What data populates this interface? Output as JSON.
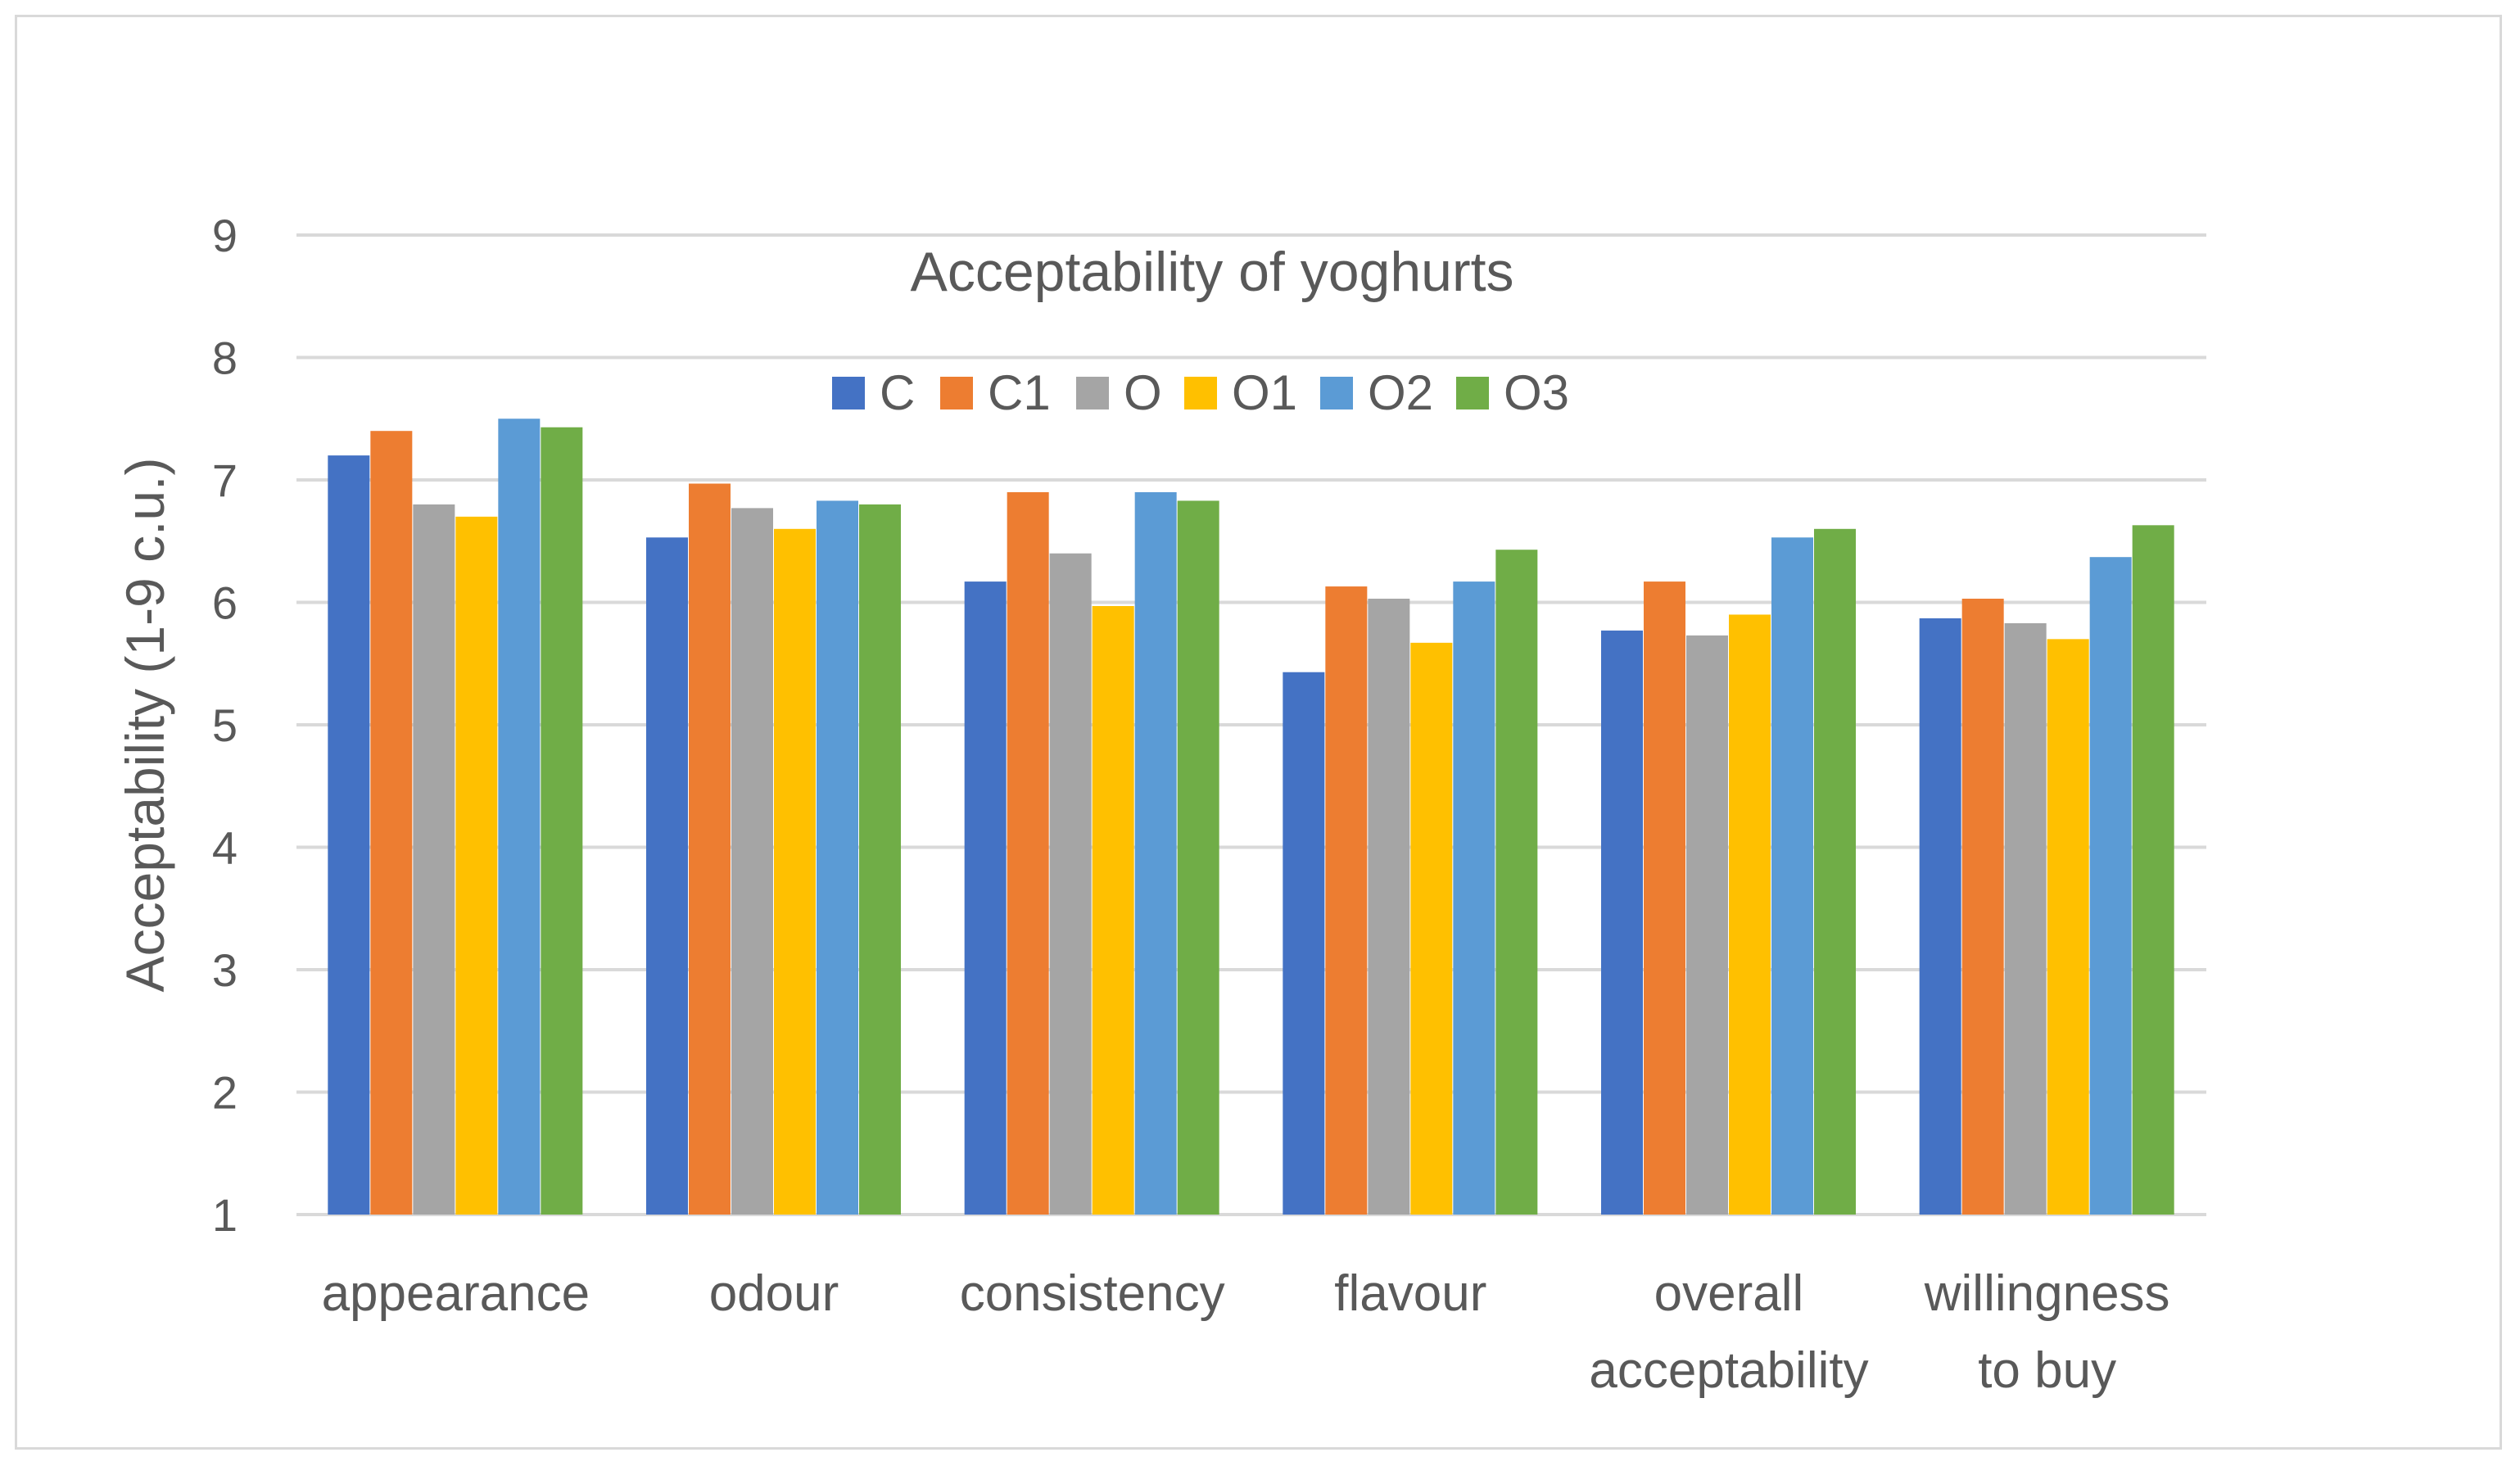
{
  "chart_data": {
    "type": "bar",
    "title": "Acceptability of yoghurts",
    "xlabel": "",
    "ylabel": "Acceptability (1-9 c.u.)",
    "ylim": [
      1,
      9
    ],
    "yticks": [
      "1",
      "2",
      "3",
      "4",
      "5",
      "6",
      "7",
      "8",
      "9"
    ],
    "grid": true,
    "legend_position": "top",
    "categories": [
      [
        "appearance"
      ],
      [
        "odour"
      ],
      [
        "consistency"
      ],
      [
        "flavour"
      ],
      [
        "overall",
        "acceptability"
      ],
      [
        "willingness",
        "to buy"
      ]
    ],
    "series": [
      {
        "name": "C",
        "color": "#4472c4",
        "values": [
          7.2,
          6.53,
          6.17,
          5.43,
          5.77,
          5.87
        ]
      },
      {
        "name": "C1",
        "color": "#ed7d31",
        "values": [
          7.4,
          6.97,
          6.9,
          6.13,
          6.17,
          6.03
        ]
      },
      {
        "name": "O",
        "color": "#a5a5a5",
        "values": [
          6.8,
          6.77,
          6.4,
          6.03,
          5.73,
          5.83
        ]
      },
      {
        "name": "O1",
        "color": "#ffc000",
        "values": [
          6.7,
          6.6,
          5.97,
          5.67,
          5.9,
          5.7
        ]
      },
      {
        "name": "O2",
        "color": "#5b9bd5",
        "values": [
          7.5,
          6.83,
          6.9,
          6.17,
          6.53,
          6.37
        ]
      },
      {
        "name": "O3",
        "color": "#70ad47",
        "values": [
          7.43,
          6.8,
          6.83,
          6.43,
          6.6,
          6.63
        ]
      }
    ]
  }
}
